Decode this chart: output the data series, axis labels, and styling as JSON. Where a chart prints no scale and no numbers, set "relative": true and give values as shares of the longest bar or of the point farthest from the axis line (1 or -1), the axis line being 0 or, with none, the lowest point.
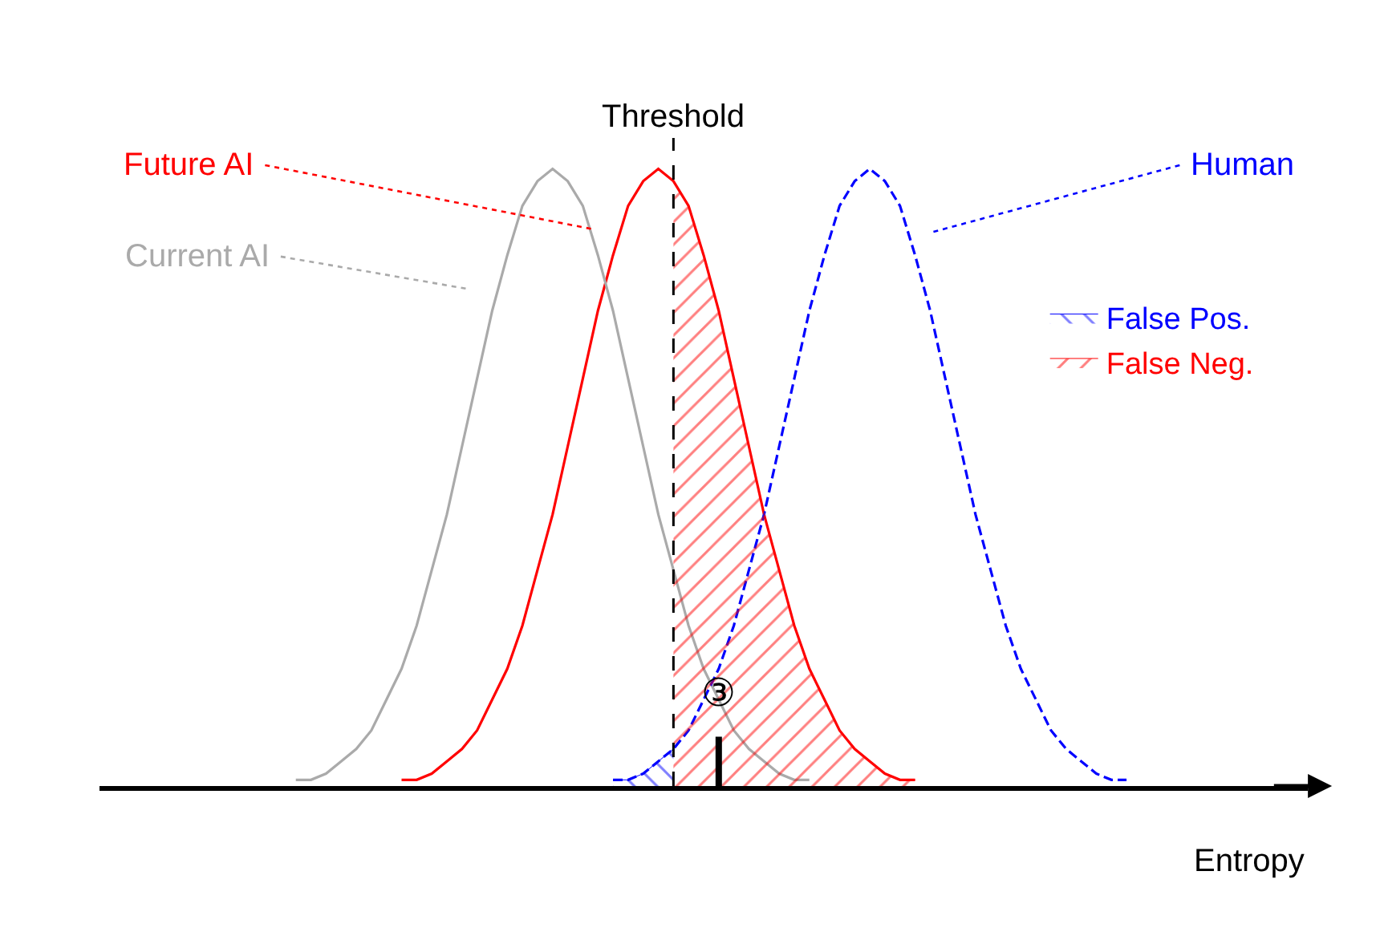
{
  "chart_data": {
    "type": "line",
    "relative": true,
    "xlabel": "Entropy",
    "legend": "top right",
    "marker": "none",
    "categories": [
      null,
      null,
      null,
      null,
      null,
      null,
      null,
      null,
      null,
      null,
      null,
      null,
      null,
      null,
      null,
      null,
      null,
      null,
      null,
      null,
      null,
      null,
      null,
      null,
      null,
      null,
      null,
      null,
      null,
      null,
      null,
      null,
      null,
      null,
      null,
      null,
      null,
      null,
      null,
      null,
      null,
      null,
      null,
      null,
      null,
      null,
      null,
      null,
      null,
      null,
      null,
      null,
      null,
      null,
      null,
      null,
      null,
      null,
      null,
      null,
      null,
      null,
      null,
      null,
      null,
      null,
      null,
      null,
      null,
      null,
      null,
      null,
      null,
      null,
      null,
      null,
      null,
      null,
      null,
      null,
      null
    ],
    "series": [
      {
        "name": "Future AI",
        "color": "#ff0000",
        "line_style": "solid",
        "values": [
          null,
          null,
          null,
          null,
          null,
          null,
          null,
          null,
          null,
          null,
          null,
          null,
          null,
          null,
          null,
          null,
          null,
          null,
          null,
          null,
          0.01,
          0.01,
          0.02,
          0.04,
          0.06,
          0.09,
          0.14,
          0.19,
          0.26,
          0.35,
          0.44,
          0.55,
          0.66,
          0.77,
          0.86,
          0.94,
          0.98,
          1,
          0.98,
          0.94,
          0.86,
          0.77,
          0.66,
          0.55,
          0.44,
          0.35,
          0.26,
          0.19,
          0.14,
          0.09,
          0.06,
          0.04,
          0.02,
          0.01,
          0.01,
          null,
          null,
          null,
          null,
          null,
          null,
          null,
          null,
          null,
          null,
          null,
          null,
          null,
          null,
          null,
          null,
          null,
          null,
          null,
          null,
          null,
          null,
          null,
          null,
          null,
          null
        ]
      },
      {
        "name": "Current AI",
        "color": "#aaaaaa",
        "line_style": "solid",
        "values": [
          null,
          null,
          null,
          null,
          null,
          null,
          null,
          null,
          null,
          null,
          null,
          null,
          null,
          0.01,
          0.01,
          0.02,
          0.04,
          0.06,
          0.09,
          0.14,
          0.19,
          0.26,
          0.35,
          0.44,
          0.55,
          0.66,
          0.77,
          0.86,
          0.94,
          0.98,
          1,
          0.98,
          0.94,
          0.86,
          0.77,
          0.66,
          0.55,
          0.44,
          0.35,
          0.26,
          0.19,
          0.14,
          0.09,
          0.06,
          0.04,
          0.02,
          0.01,
          0.01,
          null,
          null,
          null,
          null,
          null,
          null,
          null,
          null,
          null,
          null,
          null,
          null,
          null,
          null,
          null,
          null,
          null,
          null,
          null,
          null,
          null,
          null,
          null,
          null,
          null,
          null,
          null,
          null,
          null,
          null,
          null,
          null,
          null
        ]
      },
      {
        "name": "Human",
        "color": "#0000ff",
        "line_style": "dashed",
        "values": [
          null,
          null,
          null,
          null,
          null,
          null,
          null,
          null,
          null,
          null,
          null,
          null,
          null,
          null,
          null,
          null,
          null,
          null,
          null,
          null,
          null,
          null,
          null,
          null,
          null,
          null,
          null,
          null,
          null,
          null,
          null,
          null,
          null,
          null,
          0.01,
          0.01,
          0.02,
          0.04,
          0.06,
          0.09,
          0.14,
          0.19,
          0.26,
          0.35,
          0.44,
          0.55,
          0.66,
          0.77,
          0.86,
          0.94,
          0.98,
          1,
          0.98,
          0.94,
          0.86,
          0.77,
          0.66,
          0.55,
          0.44,
          0.35,
          0.26,
          0.19,
          0.14,
          0.09,
          0.06,
          0.04,
          0.02,
          0.01,
          0.01,
          null,
          null,
          null,
          null,
          null,
          null,
          null,
          null,
          null,
          null,
          null,
          null
        ]
      },
      {
        "name": "False Pos.",
        "color": "#0000ff",
        "type": "area",
        "values": [
          null,
          null,
          null,
          null,
          null,
          null,
          null,
          null,
          null,
          null,
          null,
          null,
          null,
          null,
          null,
          null,
          null,
          null,
          null,
          null,
          null,
          null,
          null,
          null,
          null,
          null,
          null,
          null,
          null,
          null,
          null,
          null,
          null,
          null,
          0.01,
          0.01,
          0.02,
          0.04,
          0.06,
          null,
          null,
          null,
          null,
          null,
          null,
          null,
          null,
          null,
          null,
          null,
          null,
          null,
          null,
          null,
          null,
          null,
          null,
          null,
          null,
          null,
          null,
          null,
          null,
          null,
          null,
          null,
          null,
          null,
          null,
          null,
          null,
          null,
          null,
          null,
          null,
          null,
          null,
          null,
          null,
          null,
          null
        ]
      },
      {
        "name": "False Neg.",
        "color": "#ff0000",
        "type": "area",
        "values": [
          null,
          null,
          null,
          null,
          null,
          null,
          null,
          null,
          null,
          null,
          null,
          null,
          null,
          null,
          null,
          null,
          null,
          null,
          null,
          null,
          null,
          null,
          null,
          null,
          null,
          null,
          null,
          null,
          null,
          null,
          null,
          null,
          null,
          null,
          null,
          null,
          null,
          null,
          0.98,
          0.94,
          0.86,
          0.77,
          0.66,
          0.55,
          0.44,
          0.35,
          0.26,
          0.19,
          0.14,
          0.09,
          0.06,
          0.04,
          0.02,
          0.01,
          0.01,
          null,
          null,
          null,
          null,
          null,
          null,
          null,
          null,
          null,
          null,
          null,
          null,
          null,
          null,
          null,
          null,
          null,
          null,
          null,
          null,
          null,
          null,
          null,
          null,
          null,
          null
        ]
      }
    ],
    "annotations": [
      "Threshold",
      "③"
    ]
  }
}
